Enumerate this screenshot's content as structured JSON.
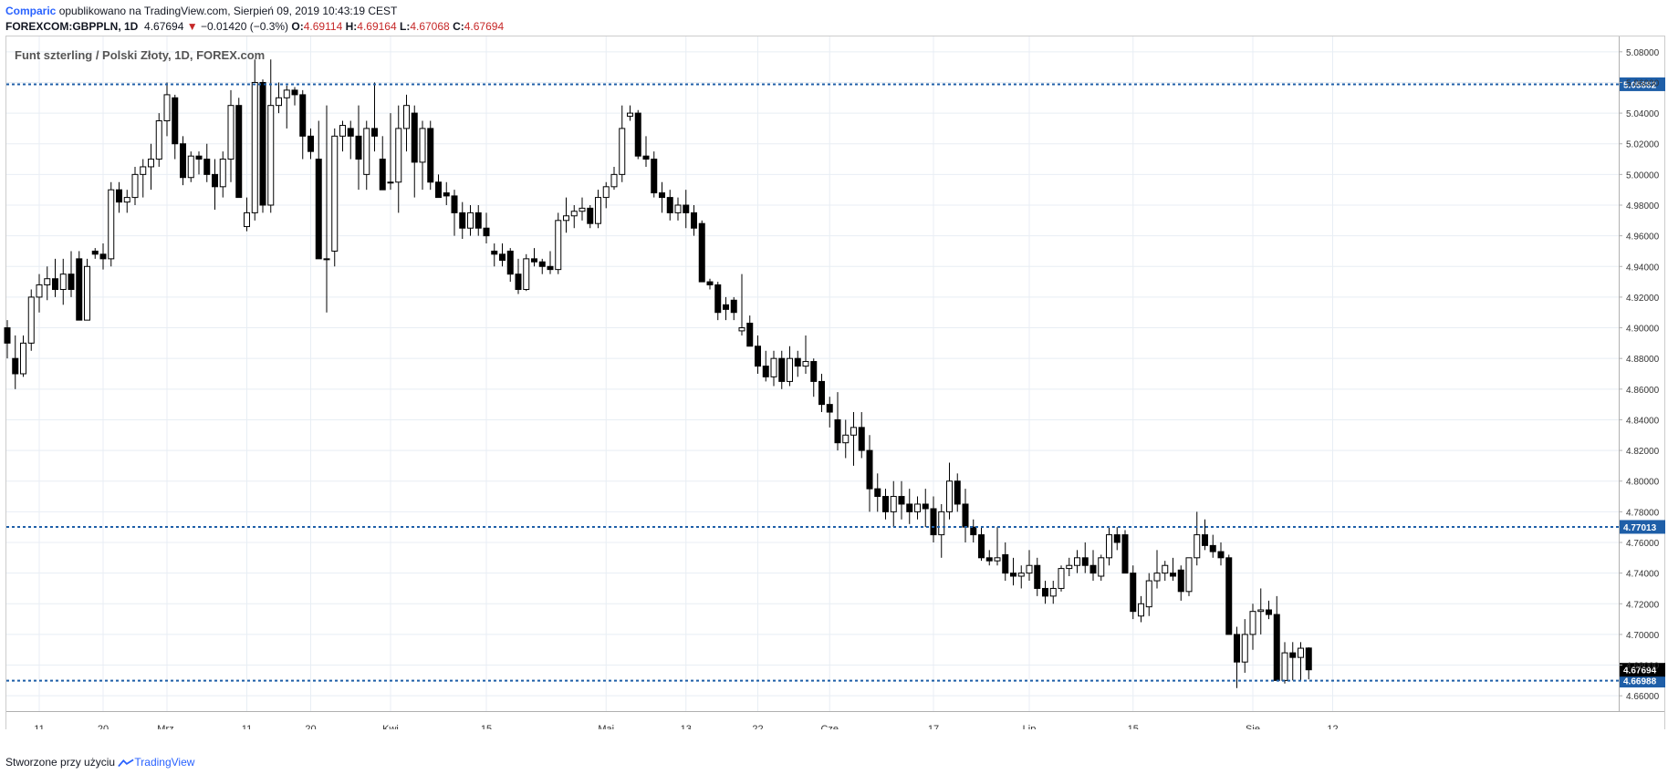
{
  "header": {
    "brand": "Comparic",
    "published": " opublikowano na TradingView.com, Sierpień 09, 2019 10:43:19 CEST",
    "symbol": "FOREXCOM:GBPPLN, 1D",
    "last": "4.67694",
    "change_arrow": "▼",
    "change": "−0.01420 (−0.3%)",
    "o_label": "O:",
    "o_value": "4.69114",
    "h_label": "H:",
    "h_value": "4.69164",
    "l_label": "L:",
    "l_value": "4.67068",
    "c_label": "C:",
    "c_value": "4.67694"
  },
  "footer": {
    "text": "Stworzone przy użyciu",
    "brand": "TradingView"
  },
  "chart_data": {
    "type": "candlestick",
    "title": "Funt szterling / Polski Złoty, 1D, FOREX.com",
    "ylim": [
      4.65,
      5.09
    ],
    "y_ticks": [
      "5.08000",
      "5.06000",
      "5.04000",
      "5.02000",
      "5.00000",
      "4.98000",
      "4.96000",
      "4.94000",
      "4.92000",
      "4.90000",
      "4.88000",
      "4.86000",
      "4.84000",
      "4.82000",
      "4.80000",
      "4.78000",
      "4.76000",
      "4.74000",
      "4.72000",
      "4.70000",
      "4.68000",
      "4.66000"
    ],
    "x_ticks": [
      "11",
      "20",
      "Mrz.",
      "11",
      "20",
      "Kwi",
      "15",
      "Maj",
      "13",
      "22",
      "Cze",
      "17",
      "Lip",
      "15",
      "Sie",
      "12"
    ],
    "x_tick_index": [
      4,
      12,
      20,
      30,
      38,
      48,
      60,
      75,
      85,
      94,
      103,
      116,
      128,
      141,
      156,
      166
    ],
    "levels": [
      {
        "value": 5.05882,
        "label": "5.05882"
      },
      {
        "value": 4.77013,
        "label": "4.77013"
      },
      {
        "value": 4.66988,
        "label": "4.66988"
      }
    ],
    "last_price": {
      "value": 4.67694,
      "label": "4.67694"
    },
    "grid": true,
    "candles": [
      [
        4.9,
        4.905,
        4.88,
        4.89
      ],
      [
        4.88,
        4.895,
        4.86,
        4.87
      ],
      [
        4.87,
        4.895,
        4.868,
        4.89
      ],
      [
        4.89,
        4.925,
        4.885,
        4.92
      ],
      [
        4.92,
        4.935,
        4.91,
        4.928
      ],
      [
        4.928,
        4.94,
        4.918,
        4.932
      ],
      [
        4.932,
        4.945,
        4.92,
        4.925
      ],
      [
        4.925,
        4.945,
        4.915,
        4.935
      ],
      [
        4.935,
        4.95,
        4.92,
        4.925
      ],
      [
        4.945,
        4.95,
        4.905,
        4.905
      ],
      [
        4.905,
        4.945,
        4.905,
        4.94
      ],
      [
        4.95,
        4.952,
        4.945,
        4.948
      ],
      [
        4.948,
        4.955,
        4.938,
        4.945
      ],
      [
        4.945,
        4.995,
        4.94,
        4.99
      ],
      [
        4.99,
        4.995,
        4.975,
        4.982
      ],
      [
        4.982,
        4.99,
        4.975,
        4.985
      ],
      [
        4.985,
        5.005,
        4.98,
        5.0
      ],
      [
        5.0,
        5.01,
        4.985,
        5.005
      ],
      [
        5.005,
        5.02,
        4.99,
        5.01
      ],
      [
        5.01,
        5.04,
        5.005,
        5.035
      ],
      [
        5.035,
        5.06,
        5.025,
        5.052
      ],
      [
        5.05,
        5.052,
        5.01,
        5.02
      ],
      [
        5.02,
        5.025,
        4.993,
        4.998
      ],
      [
        4.998,
        5.015,
        4.995,
        5.012
      ],
      [
        5.012,
        5.015,
        5.0,
        5.01
      ],
      [
        5.01,
        5.02,
        4.995,
        5.0
      ],
      [
        5.0,
        5.01,
        4.977,
        4.992
      ],
      [
        4.992,
        5.015,
        4.985,
        5.01
      ],
      [
        5.01,
        5.055,
        4.995,
        5.045
      ],
      [
        5.045,
        5.05,
        4.985,
        4.985
      ],
      [
        4.966,
        4.985,
        4.963,
        4.975
      ],
      [
        4.975,
        5.075,
        4.97,
        5.06
      ],
      [
        5.06,
        5.062,
        4.975,
        4.98
      ],
      [
        4.98,
        5.075,
        4.975,
        5.045
      ],
      [
        5.045,
        5.06,
        5.04,
        5.05
      ],
      [
        5.05,
        5.058,
        5.03,
        5.055
      ],
      [
        5.055,
        5.057,
        5.045,
        5.052
      ],
      [
        5.052,
        5.055,
        5.01,
        5.025
      ],
      [
        5.025,
        5.03,
        5.01,
        5.015
      ],
      [
        5.01,
        5.035,
        4.945,
        4.945
      ],
      [
        4.945,
        5.045,
        4.91,
        4.945
      ],
      [
        4.95,
        5.03,
        4.94,
        5.025
      ],
      [
        5.025,
        5.035,
        5.015,
        5.032
      ],
      [
        5.03,
        5.035,
        5.01,
        5.025
      ],
      [
        5.025,
        5.045,
        4.99,
        5.01
      ],
      [
        5.0,
        5.035,
        4.99,
        5.03
      ],
      [
        5.03,
        5.06,
        5.015,
        5.025
      ],
      [
        5.01,
        5.025,
        4.99,
        4.99
      ],
      [
        4.995,
        5.04,
        4.99,
        4.995
      ],
      [
        4.995,
        5.045,
        4.975,
        5.03
      ],
      [
        5.03,
        5.052,
        5.015,
        5.045
      ],
      [
        5.04,
        5.045,
        4.985,
        5.008
      ],
      [
        5.008,
        5.035,
        4.99,
        5.03
      ],
      [
        5.03,
        5.035,
        4.99,
        4.995
      ],
      [
        4.995,
        5.0,
        4.985,
        4.985
      ],
      [
        4.988,
        4.995,
        4.98,
        4.986
      ],
      [
        4.986,
        4.99,
        4.96,
        4.975
      ],
      [
        4.975,
        4.982,
        4.958,
        4.965
      ],
      [
        4.965,
        4.98,
        4.96,
        4.975
      ],
      [
        4.975,
        4.98,
        4.96,
        4.965
      ],
      [
        4.965,
        4.975,
        4.955,
        4.96
      ],
      [
        4.95,
        4.955,
        4.94,
        4.948
      ],
      [
        4.948,
        4.955,
        4.94,
        4.944
      ],
      [
        4.95,
        4.952,
        4.93,
        4.935
      ],
      [
        4.935,
        4.945,
        4.922,
        4.925
      ],
      [
        4.925,
        4.948,
        4.924,
        4.945
      ],
      [
        4.945,
        4.952,
        4.94,
        4.943
      ],
      [
        4.943,
        4.945,
        4.935,
        4.94
      ],
      [
        4.94,
        4.95,
        4.935,
        4.938
      ],
      [
        4.938,
        4.975,
        4.935,
        4.97
      ],
      [
        4.97,
        4.985,
        4.962,
        4.973
      ],
      [
        4.973,
        4.98,
        4.965,
        4.976
      ],
      [
        4.976,
        4.985,
        4.97,
        4.978
      ],
      [
        4.978,
        4.98,
        4.965,
        4.968
      ],
      [
        4.968,
        4.99,
        4.965,
        4.985
      ],
      [
        4.985,
        4.995,
        4.978,
        4.992
      ],
      [
        4.992,
        5.005,
        4.99,
        5.0
      ],
      [
        5.0,
        5.045,
        4.995,
        5.03
      ],
      [
        5.038,
        5.045,
        5.035,
        5.04
      ],
      [
        5.04,
        5.042,
        5.01,
        5.012
      ],
      [
        5.012,
        5.025,
        5.005,
        5.01
      ],
      [
        5.01,
        5.015,
        4.985,
        4.988
      ],
      [
        4.988,
        4.995,
        4.975,
        4.985
      ],
      [
        4.985,
        4.99,
        4.97,
        4.975
      ],
      [
        4.975,
        4.985,
        4.97,
        4.98
      ],
      [
        4.98,
        4.99,
        4.965,
        4.975
      ],
      [
        4.975,
        4.98,
        4.96,
        4.965
      ],
      [
        4.968,
        4.97,
        4.93,
        4.93
      ],
      [
        4.93,
        4.932,
        4.925,
        4.928
      ],
      [
        4.928,
        4.93,
        4.905,
        4.91
      ],
      [
        4.915,
        4.92,
        4.905,
        4.912
      ],
      [
        4.918,
        4.92,
        4.905,
        4.91
      ],
      [
        4.898,
        4.935,
        4.895,
        4.9
      ],
      [
        4.903,
        4.908,
        4.89,
        4.888
      ],
      [
        4.888,
        4.895,
        4.87,
        4.875
      ],
      [
        4.875,
        4.885,
        4.865,
        4.868
      ],
      [
        4.868,
        4.885,
        4.862,
        4.88
      ],
      [
        4.88,
        4.885,
        4.86,
        4.865
      ],
      [
        4.865,
        4.888,
        4.862,
        4.88
      ],
      [
        4.88,
        4.885,
        4.868,
        4.875
      ],
      [
        4.875,
        4.895,
        4.87,
        4.878
      ],
      [
        4.878,
        4.88,
        4.855,
        4.865
      ],
      [
        4.865,
        4.87,
        4.845,
        4.85
      ],
      [
        4.85,
        4.855,
        4.835,
        4.845
      ],
      [
        4.84,
        4.858,
        4.82,
        4.825
      ],
      [
        4.825,
        4.84,
        4.815,
        4.83
      ],
      [
        4.83,
        4.845,
        4.81,
        4.835
      ],
      [
        4.835,
        4.845,
        4.815,
        4.82
      ],
      [
        4.82,
        4.83,
        4.78,
        4.795
      ],
      [
        4.795,
        4.805,
        4.78,
        4.79
      ],
      [
        4.79,
        4.795,
        4.775,
        4.78
      ],
      [
        4.78,
        4.8,
        4.77,
        4.79
      ],
      [
        4.79,
        4.8,
        4.775,
        4.785
      ],
      [
        4.785,
        4.795,
        4.772,
        4.78
      ],
      [
        4.78,
        4.79,
        4.775,
        4.785
      ],
      [
        4.785,
        4.795,
        4.77,
        4.782
      ],
      [
        4.782,
        4.79,
        4.76,
        4.765
      ],
      [
        4.765,
        4.785,
        4.75,
        4.78
      ],
      [
        4.78,
        4.812,
        4.775,
        4.8
      ],
      [
        4.8,
        4.805,
        4.78,
        4.785
      ],
      [
        4.785,
        4.795,
        4.76,
        4.77
      ],
      [
        4.77,
        4.775,
        4.76,
        4.765
      ],
      [
        4.765,
        4.77,
        4.748,
        4.75
      ],
      [
        4.75,
        4.755,
        4.745,
        4.748
      ],
      [
        4.748,
        4.77,
        4.745,
        4.75
      ],
      [
        4.752,
        4.76,
        4.735,
        4.74
      ],
      [
        4.74,
        4.75,
        4.732,
        4.738
      ],
      [
        4.738,
        4.745,
        4.73,
        4.74
      ],
      [
        4.74,
        4.755,
        4.735,
        4.745
      ],
      [
        4.745,
        4.75,
        4.725,
        4.73
      ],
      [
        4.73,
        4.735,
        4.72,
        4.725
      ],
      [
        4.725,
        4.735,
        4.72,
        4.73
      ],
      [
        4.73,
        4.745,
        4.728,
        4.743
      ],
      [
        4.743,
        4.75,
        4.738,
        4.745
      ],
      [
        4.745,
        4.755,
        4.74,
        4.75
      ],
      [
        4.75,
        4.76,
        4.74,
        4.745
      ],
      [
        4.745,
        4.755,
        4.735,
        4.74
      ],
      [
        4.738,
        4.752,
        4.735,
        4.75
      ],
      [
        4.75,
        4.77,
        4.745,
        4.765
      ],
      [
        4.765,
        4.77,
        4.755,
        4.76
      ],
      [
        4.765,
        4.768,
        4.74,
        4.74
      ],
      [
        4.74,
        4.745,
        4.71,
        4.715
      ],
      [
        4.712,
        4.725,
        4.708,
        4.72
      ],
      [
        4.718,
        4.74,
        4.712,
        4.735
      ],
      [
        4.735,
        4.755,
        4.73,
        4.74
      ],
      [
        4.74,
        4.748,
        4.735,
        4.745
      ],
      [
        4.74,
        4.75,
        4.735,
        4.738
      ],
      [
        4.742,
        4.745,
        4.722,
        4.728
      ],
      [
        4.728,
        4.75,
        4.725,
        4.75
      ],
      [
        4.75,
        4.78,
        4.745,
        4.765
      ],
      [
        4.765,
        4.775,
        4.755,
        4.758
      ],
      [
        4.758,
        4.765,
        4.75,
        4.754
      ],
      [
        4.754,
        4.76,
        4.745,
        4.75
      ],
      [
        4.75,
        4.752,
        4.7,
        4.7
      ],
      [
        4.7,
        4.705,
        4.665,
        4.682
      ],
      [
        4.682,
        4.71,
        4.675,
        4.7
      ],
      [
        4.7,
        4.72,
        4.69,
        4.715
      ],
      [
        4.715,
        4.73,
        4.7,
        4.716
      ],
      [
        4.716,
        4.722,
        4.71,
        4.713
      ],
      [
        4.713,
        4.725,
        4.67,
        4.67
      ],
      [
        4.67,
        4.695,
        4.668,
        4.688
      ],
      [
        4.688,
        4.695,
        4.67,
        4.685
      ],
      [
        4.685,
        4.695,
        4.67,
        4.691
      ],
      [
        4.69114,
        4.69164,
        4.67068,
        4.67694
      ]
    ]
  }
}
